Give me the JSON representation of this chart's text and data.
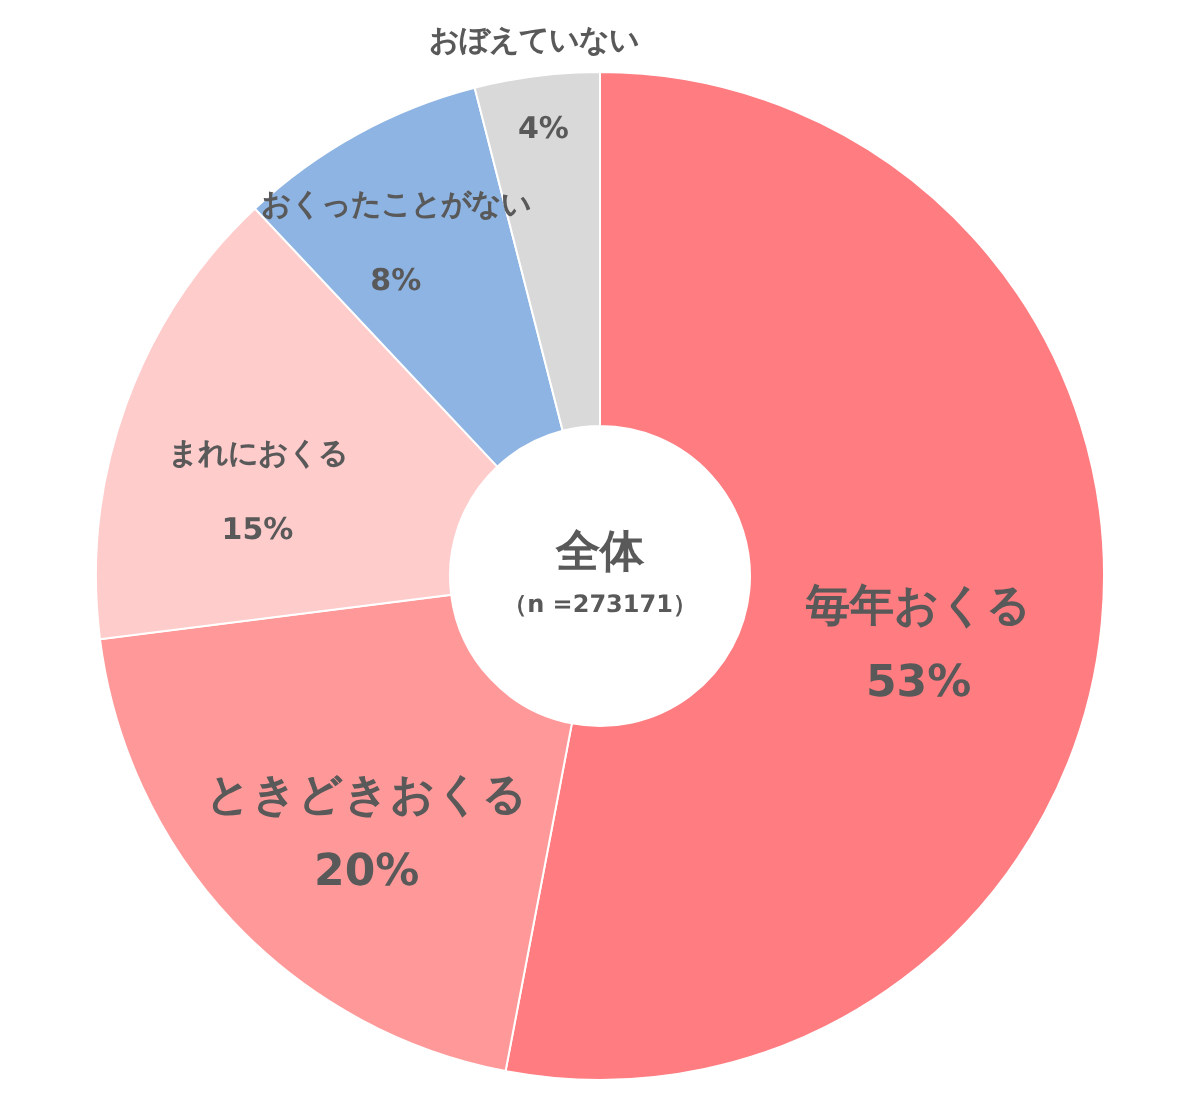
{
  "chart_data": {
    "type": "donut",
    "title": "全体",
    "subtitle": "（n =273171）",
    "categories": [
      "毎年おくる",
      "ときどきおくる",
      "まれにおくる",
      "おくったことがない",
      "おぼえていない"
    ],
    "values": [
      53,
      20,
      15,
      8,
      4
    ],
    "value_labels": [
      "53%",
      "20%",
      "15%",
      "8%",
      "4%"
    ],
    "colors": [
      "#ff7c80",
      "#ff9999",
      "#ffcccc",
      "#8eb4e3",
      "#d9d9d9"
    ]
  }
}
